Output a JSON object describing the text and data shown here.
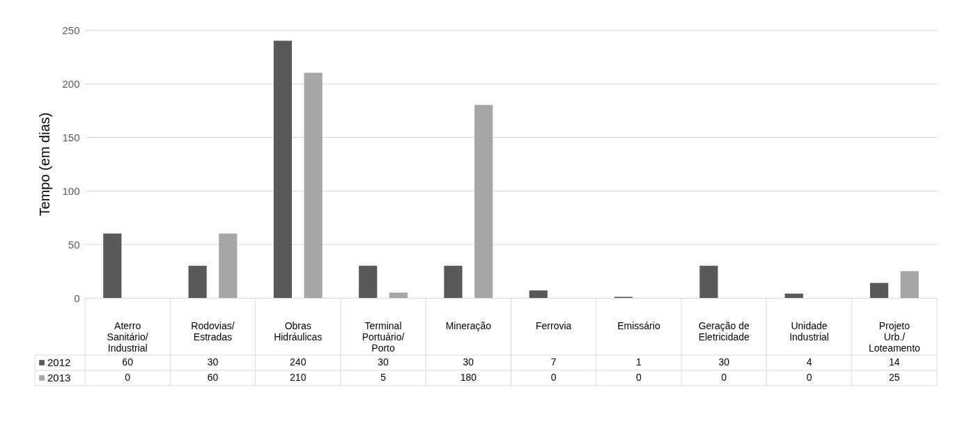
{
  "chart_data": {
    "type": "bar",
    "ylabel": "Tempo (em dias)",
    "categories": [
      "Aterro Sanitário/Industrial",
      "Rodovias/Estradas",
      "Obras Hidráulicas",
      "Terminal Portuário/Porto",
      "Mineração",
      "Ferrovia",
      "Emissário",
      "Geração de Eletricidade",
      "Unidade Industrial",
      "Projeto Urb./Loteamento"
    ],
    "series": [
      {
        "name": "2012",
        "color": "#595959",
        "values": [
          60,
          30,
          240,
          30,
          30,
          7,
          1,
          30,
          4,
          14
        ]
      },
      {
        "name": "2013",
        "color": "#a6a6a6",
        "values": [
          0,
          60,
          210,
          5,
          180,
          0,
          0,
          0,
          0,
          25
        ]
      }
    ],
    "ylim": [
      0,
      250
    ],
    "yticks": [
      0,
      50,
      100,
      150,
      200,
      250
    ],
    "grid": "y",
    "legend": "bottom left",
    "data_labels": true
  }
}
